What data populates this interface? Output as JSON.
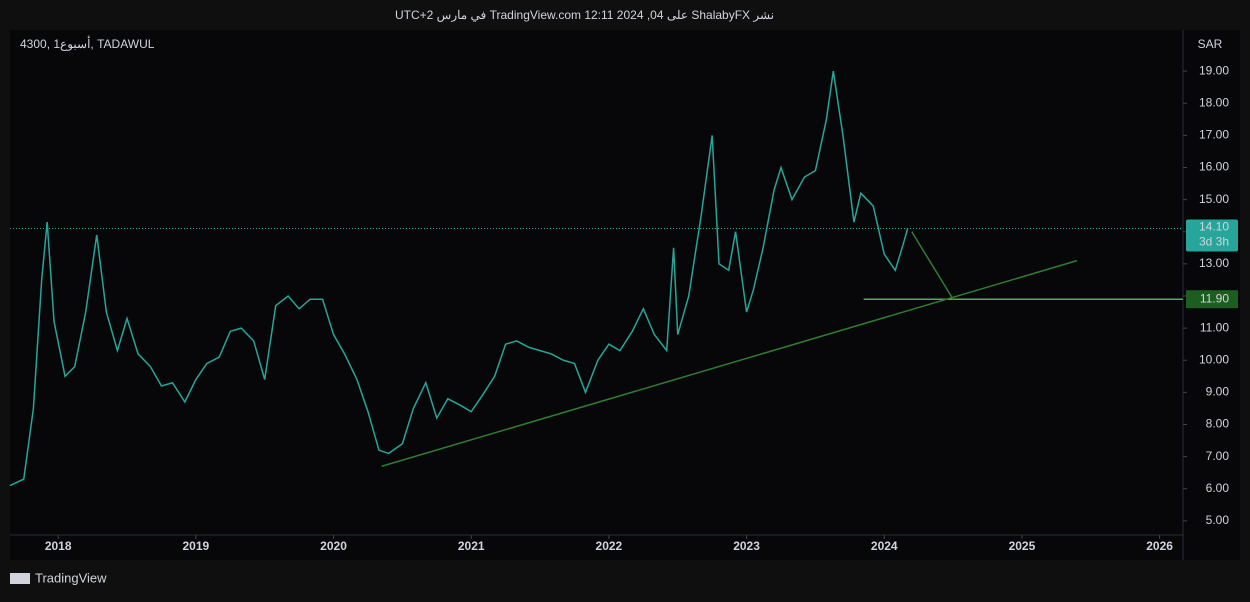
{
  "header": "نشر ShalabyFX على TradingView.com 12:11 2024 ,04 في مارس UTC+2",
  "footer": "TradingView",
  "chart_data": {
    "type": "line",
    "symbol": "4300, 1أسبوع, TADAWUL",
    "currency": "SAR",
    "countdown": "3d 3h",
    "series": [
      {
        "color": "#26a69a",
        "x": [
          2017.65,
          2017.75,
          2017.82,
          2017.88,
          2017.92,
          2017.97,
          2018.05,
          2018.12,
          2018.2,
          2018.28,
          2018.35,
          2018.43,
          2018.5,
          2018.58,
          2018.67,
          2018.75,
          2018.83,
          2018.92,
          2019.0,
          2019.08,
          2019.17,
          2019.25,
          2019.33,
          2019.42,
          2019.5,
          2019.58,
          2019.67,
          2019.75,
          2019.83,
          2019.92,
          2020.0,
          2020.08,
          2020.17,
          2020.25,
          2020.33,
          2020.4,
          2020.5,
          2020.58,
          2020.67,
          2020.75,
          2020.83,
          2020.92,
          2021.0,
          2021.08,
          2021.17,
          2021.25,
          2021.33,
          2021.42,
          2021.5,
          2021.58,
          2021.67,
          2021.75,
          2021.83,
          2021.92,
          2022.0,
          2022.08,
          2022.17,
          2022.25,
          2022.33,
          2022.42,
          2022.47,
          2022.5,
          2022.58,
          2022.67,
          2022.75,
          2022.8,
          2022.87,
          2022.92,
          2023.0,
          2023.05,
          2023.12,
          2023.2,
          2023.25,
          2023.33,
          2023.42,
          2023.5,
          2023.58,
          2023.63,
          2023.7,
          2023.78,
          2023.83,
          2023.92,
          2024.0,
          2024.08,
          2024.13,
          2024.17
        ],
        "values": [
          6.1,
          6.3,
          8.5,
          12.5,
          14.3,
          11.2,
          9.5,
          9.8,
          11.5,
          13.9,
          11.5,
          10.3,
          11.3,
          10.2,
          9.8,
          9.2,
          9.3,
          8.7,
          9.4,
          9.9,
          10.1,
          10.9,
          11.0,
          10.6,
          9.4,
          11.7,
          12.0,
          11.6,
          11.9,
          11.9,
          10.8,
          10.2,
          9.4,
          8.4,
          7.2,
          7.1,
          7.4,
          8.5,
          9.3,
          8.2,
          8.8,
          8.6,
          8.4,
          8.9,
          9.5,
          10.5,
          10.6,
          10.4,
          10.3,
          10.2,
          10.0,
          9.9,
          9.0,
          10.0,
          10.5,
          10.3,
          10.9,
          11.6,
          10.8,
          10.3,
          13.5,
          10.8,
          12.0,
          14.5,
          17.0,
          13.0,
          12.8,
          14.0,
          11.5,
          12.2,
          13.5,
          15.3,
          16.0,
          15.0,
          15.7,
          15.9,
          17.5,
          19.0,
          17.0,
          14.3,
          15.2,
          14.8,
          13.3,
          12.8,
          13.5,
          14.1
        ]
      }
    ],
    "last_price": {
      "value": 14.1,
      "label": "14.10"
    },
    "level": {
      "value": 11.9,
      "label": "11.90",
      "x": [
        2023.85,
        2026.17
      ]
    },
    "trendlines": [
      {
        "x": [
          2020.35,
          2025.4
        ],
        "y": [
          6.7,
          13.1
        ]
      },
      {
        "x": [
          2024.2,
          2024.5
        ],
        "y": [
          14.0,
          11.9
        ]
      }
    ],
    "xlim": [
      2017.65,
      2026.17
    ],
    "xticks": [
      2018,
      2019,
      2020,
      2021,
      2022,
      2023,
      2024,
      2025,
      2026
    ],
    "ylim": [
      4.56,
      20.28
    ],
    "yticks": [
      {
        "value": 5,
        "label": "5.00"
      },
      {
        "value": 6,
        "label": "6.00"
      },
      {
        "value": 7,
        "label": "7.00"
      },
      {
        "value": 8,
        "label": "8.00"
      },
      {
        "value": 9,
        "label": "9.00"
      },
      {
        "value": 10,
        "label": "10.00"
      },
      {
        "value": 11,
        "label": "11.00"
      },
      {
        "value": 12,
        "label": "12.00"
      },
      {
        "value": 13,
        "label": "13.00"
      },
      {
        "value": 14,
        "label": "14.00"
      },
      {
        "value": 15,
        "label": "15.00"
      },
      {
        "value": 16,
        "label": "16.00"
      },
      {
        "value": 17,
        "label": "17.00"
      },
      {
        "value": 18,
        "label": "18.00"
      },
      {
        "value": 19,
        "label": "19.00"
      }
    ]
  }
}
